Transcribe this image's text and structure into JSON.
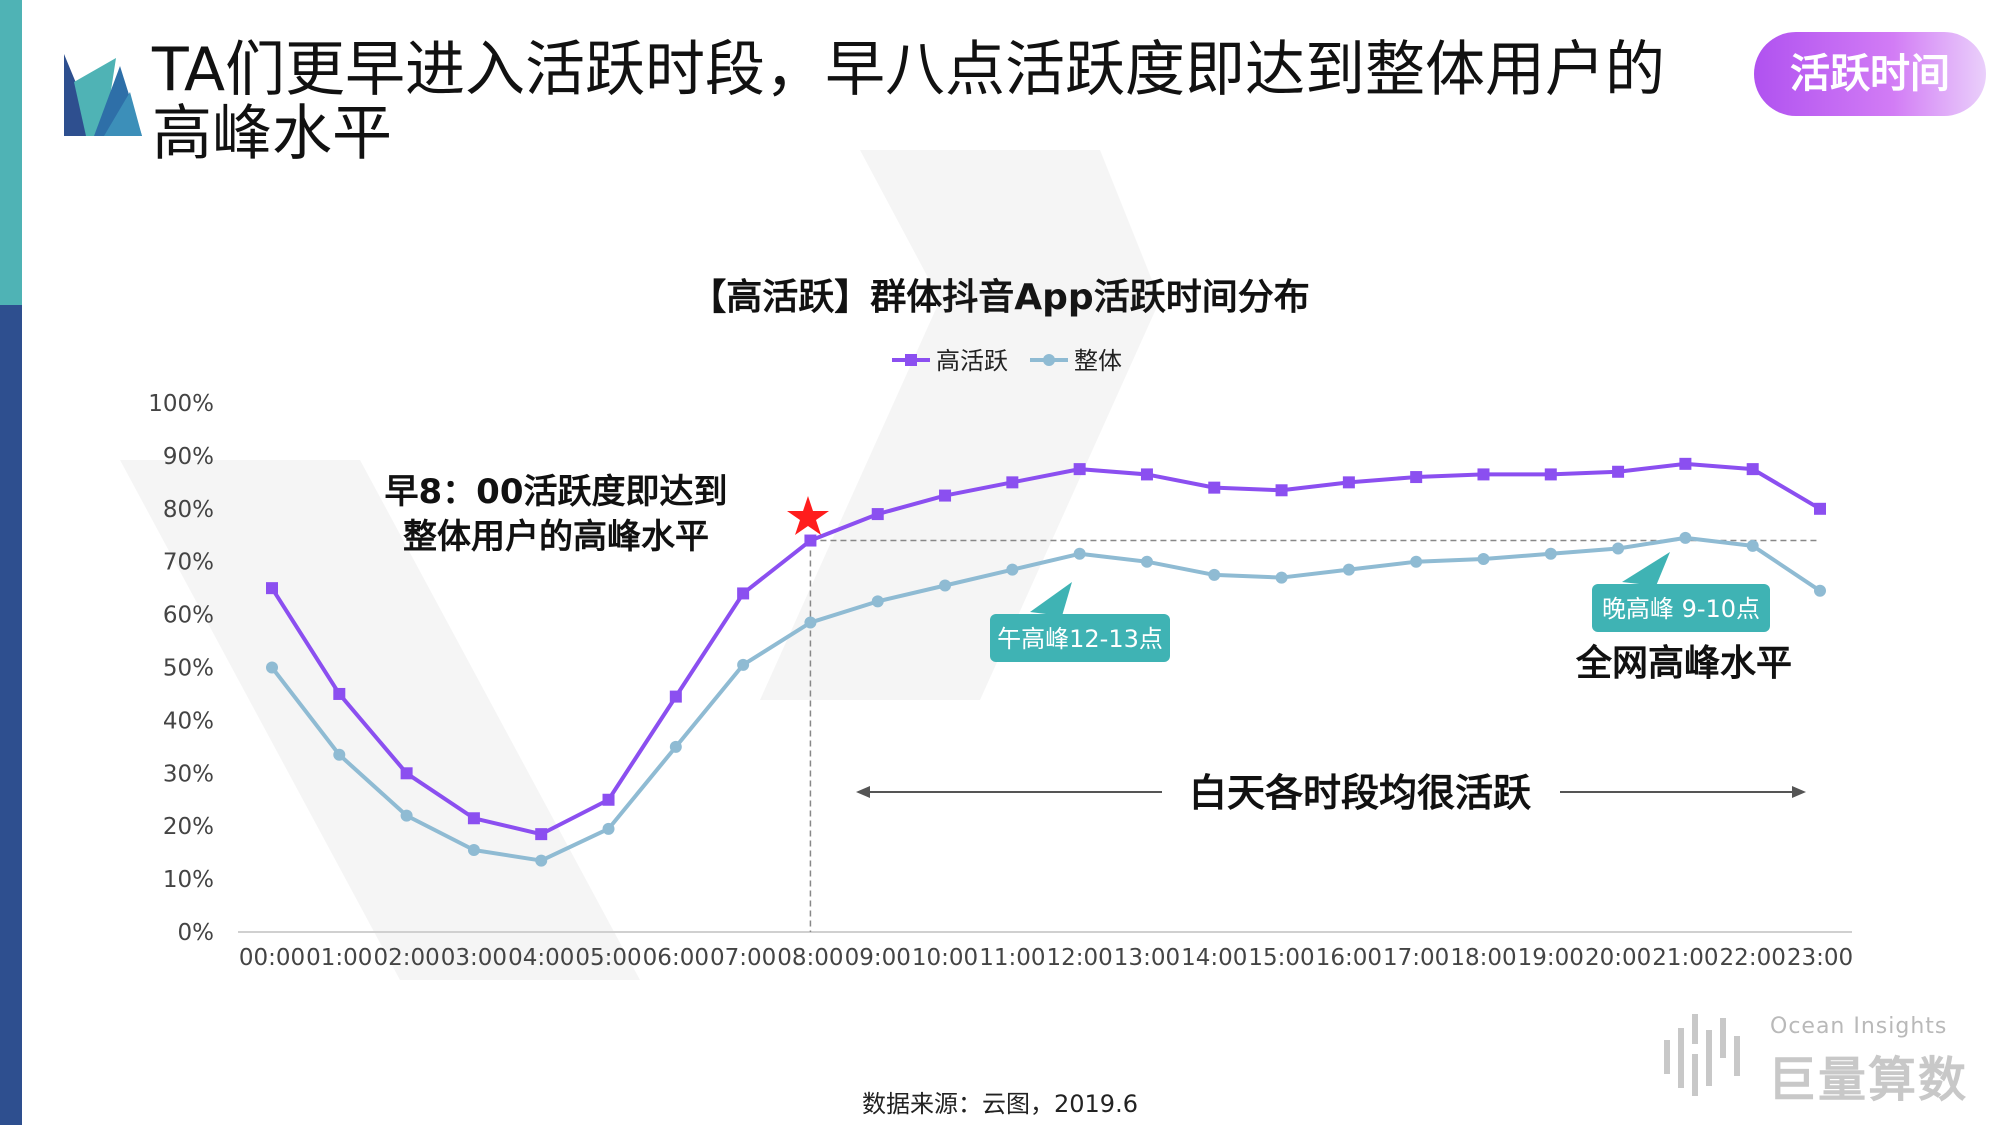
{
  "header": {
    "title": "TA们更早进入活跃时段，早八点活跃度即达到整体用户的高峰水平",
    "badge": "活跃时间"
  },
  "colors": {
    "accent_teal": "#4fb3b5",
    "accent_navy": "#2e4f8f",
    "series_high": "#8b4ff0",
    "series_overall": "#8fbbd3",
    "callout_teal": "#3fb3b4",
    "star": "#ff1d1d"
  },
  "chart_data": {
    "type": "line",
    "title": "【高活跃】群体抖音App活跃时间分布",
    "xlabel": "",
    "ylabel": "",
    "ylim": [
      0,
      100
    ],
    "yticks": [
      "0%",
      "10%",
      "20%",
      "30%",
      "40%",
      "50%",
      "60%",
      "70%",
      "80%",
      "90%",
      "100%"
    ],
    "legend_position": "top-center",
    "categories": [
      "00:00",
      "01:00",
      "02:00",
      "03:00",
      "04:00",
      "05:00",
      "06:00",
      "07:00",
      "08:00",
      "09:00",
      "10:00",
      "11:00",
      "12:00",
      "13:00",
      "14:00",
      "15:00",
      "16:00",
      "17:00",
      "18:00",
      "19:00",
      "20:00",
      "21:00",
      "22:00",
      "23:00"
    ],
    "series": [
      {
        "name": "高活跃",
        "color": "#8b4ff0",
        "marker": "square",
        "values": [
          65,
          45,
          30,
          21.5,
          18.5,
          25,
          44.5,
          64,
          74,
          79,
          82.5,
          85,
          87.5,
          86.5,
          84,
          83.5,
          85,
          86,
          86.5,
          86.5,
          87,
          88.5,
          87.5,
          80
        ]
      },
      {
        "name": "整体",
        "color": "#8fbbd3",
        "marker": "circle",
        "values": [
          50,
          33.5,
          22,
          15.5,
          13.5,
          19.5,
          35,
          50.5,
          58.5,
          62.5,
          65.5,
          68.5,
          71.5,
          70,
          67.5,
          67,
          68.5,
          70,
          70.5,
          71.5,
          72.5,
          74.5,
          73,
          64.5
        ]
      }
    ],
    "annotations": {
      "left_note_line1": "早8：00活跃度即达到",
      "left_note_line2": "整体用户的高峰水平",
      "noon_callout": "午高峰12-13点",
      "evening_callout": "晚高峰 9-10点",
      "evening_note": "全网高峰水平",
      "daytime_note": "白天各时段均很活跃"
    }
  },
  "footer": {
    "source": "数据来源：云图，2019.6",
    "watermark_en": "Ocean Insights",
    "watermark_cn": "巨量算数"
  }
}
